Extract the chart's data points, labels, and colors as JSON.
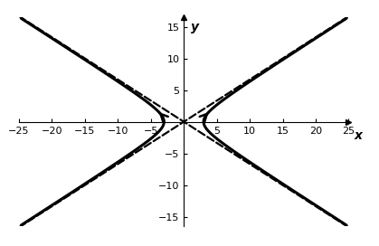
{
  "xlim": [
    -25,
    25
  ],
  "ylim": [
    -16.5,
    16.5
  ],
  "xticks": [
    -25,
    -20,
    -15,
    -10,
    -5,
    5,
    10,
    15,
    20,
    25
  ],
  "yticks": [
    -15,
    -10,
    -5,
    5,
    10,
    15
  ],
  "xlabel": "x",
  "ylabel": "y",
  "a": 3,
  "b": 2,
  "curve_color": "#000000",
  "asymptote_color": "#000000",
  "background_color": "#ffffff",
  "linewidth_curve": 2.2,
  "linewidth_asymptote": 1.6,
  "tick_fontsize": 8,
  "label_fontsize": 10,
  "figwidth": 4.19,
  "figheight": 2.72,
  "dpi": 100
}
